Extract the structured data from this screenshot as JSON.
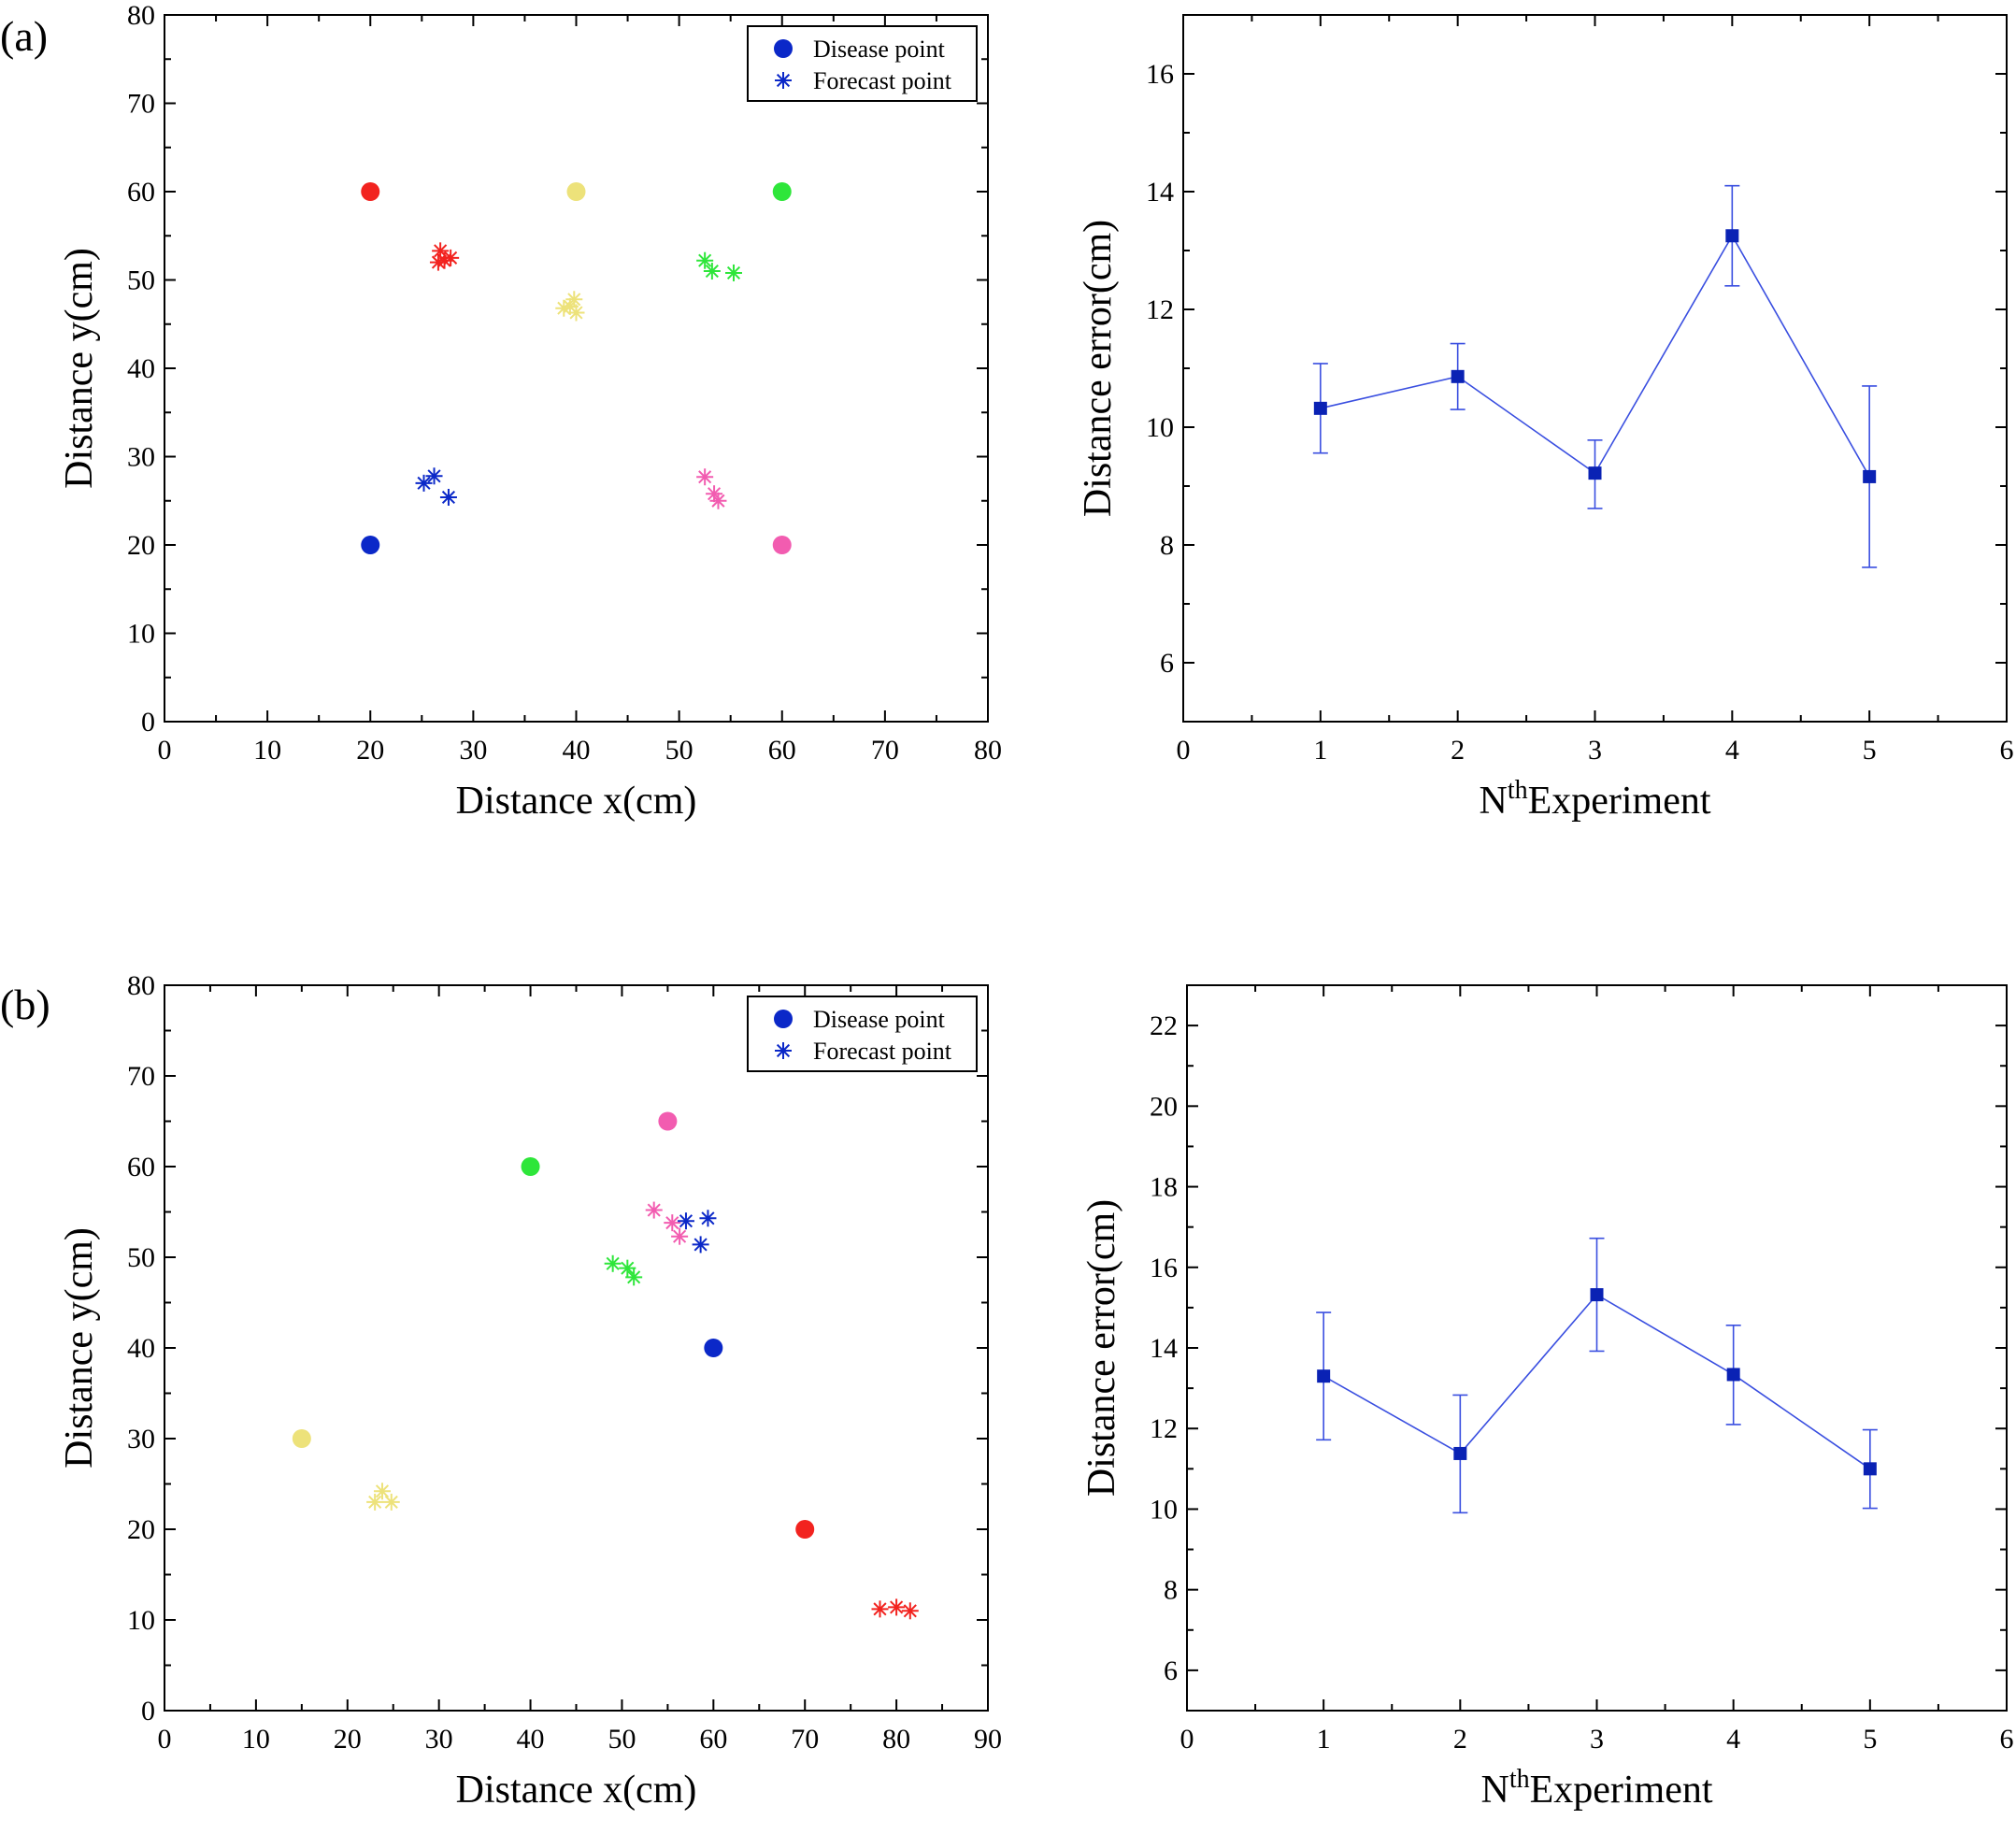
{
  "panels": {
    "a": "(a)",
    "b": "(b)"
  },
  "legend": {
    "disease": "Disease point",
    "forecast": "Forecast point"
  },
  "colors": {
    "blue": "#0b28c8",
    "red": "#f2231f",
    "yellow": "#ede27a",
    "green": "#2ee63a",
    "pink": "#f25cb0",
    "line": "#3a4fe0",
    "marker": "#0a22b4"
  },
  "chart_data": [
    {
      "id": "a-scatter",
      "type": "scatter",
      "xlabel": "Distance x(cm)",
      "ylabel": "Distance y(cm)",
      "xlim": [
        0,
        80
      ],
      "ylim": [
        0,
        80
      ],
      "xticks": [
        0,
        10,
        20,
        30,
        40,
        50,
        60,
        70,
        80
      ],
      "yticks": [
        0,
        10,
        20,
        30,
        40,
        50,
        60,
        70,
        80
      ],
      "legend": "top-right",
      "groups": [
        {
          "color": "red",
          "disease": [
            20,
            60
          ],
          "forecast": [
            [
              26.8,
              53.3
            ],
            [
              27.2,
              52.2
            ],
            [
              27.8,
              52.5
            ],
            [
              26.6,
              52.0
            ]
          ]
        },
        {
          "color": "yellow",
          "disease": [
            40,
            60
          ],
          "forecast": [
            [
              39.8,
              47.8
            ],
            [
              38.8,
              46.8
            ],
            [
              40.0,
              46.3
            ],
            [
              39.4,
              47.0
            ]
          ]
        },
        {
          "color": "green",
          "disease": [
            60,
            60
          ],
          "forecast": [
            [
              52.5,
              52.2
            ],
            [
              53.2,
              51.0
            ],
            [
              55.3,
              50.8
            ]
          ]
        },
        {
          "color": "blue",
          "disease": [
            20,
            20
          ],
          "forecast": [
            [
              25.2,
              27.0
            ],
            [
              26.2,
              27.8
            ],
            [
              27.6,
              25.4
            ]
          ]
        },
        {
          "color": "pink",
          "disease": [
            60,
            20
          ],
          "forecast": [
            [
              52.5,
              27.7
            ],
            [
              53.4,
              25.8
            ],
            [
              53.8,
              25.0
            ]
          ]
        }
      ]
    },
    {
      "id": "a-error",
      "type": "line",
      "xlabel": "N",
      "xlabel_sup": "th",
      "xlabel_rest": "Experiment",
      "ylabel": "Distance error(cm)",
      "xlim": [
        0,
        6
      ],
      "ylim": [
        5,
        17
      ],
      "xticks": [
        0,
        1,
        2,
        3,
        4,
        5,
        6
      ],
      "yticks": [
        6,
        8,
        10,
        12,
        14,
        16
      ],
      "x": [
        1,
        2,
        3,
        4,
        5
      ],
      "values": [
        10.32,
        10.86,
        9.22,
        13.25,
        9.16
      ],
      "err_upper": [
        11.08,
        11.42,
        9.78,
        14.1,
        10.7
      ],
      "err_lower": [
        9.56,
        10.3,
        8.62,
        12.4,
        7.62
      ]
    },
    {
      "id": "b-scatter",
      "type": "scatter",
      "xlabel": "Distance x(cm)",
      "ylabel": "Distance y(cm)",
      "xlim": [
        0,
        90
      ],
      "ylim": [
        0,
        80
      ],
      "xticks": [
        0,
        10,
        20,
        30,
        40,
        50,
        60,
        70,
        80,
        90
      ],
      "yticks": [
        0,
        10,
        20,
        30,
        40,
        50,
        60,
        70,
        80
      ],
      "legend": "top-right",
      "groups": [
        {
          "color": "pink",
          "disease": [
            55,
            65
          ],
          "forecast": [
            [
              53.5,
              55.2
            ],
            [
              55.5,
              53.8
            ],
            [
              56.3,
              52.3
            ]
          ]
        },
        {
          "color": "green",
          "disease": [
            40,
            60
          ],
          "forecast": [
            [
              49.0,
              49.3
            ],
            [
              50.6,
              48.8
            ],
            [
              51.3,
              47.8
            ]
          ]
        },
        {
          "color": "blue",
          "disease": [
            60,
            40
          ],
          "forecast": [
            [
              57.0,
              54.0
            ],
            [
              59.4,
              54.3
            ],
            [
              58.6,
              51.4
            ]
          ]
        },
        {
          "color": "yellow",
          "disease": [
            15,
            30
          ],
          "forecast": [
            [
              23.0,
              23.0
            ],
            [
              23.8,
              24.2
            ],
            [
              24.8,
              23.0
            ]
          ]
        },
        {
          "color": "red",
          "disease": [
            70,
            20
          ],
          "forecast": [
            [
              78.2,
              11.2
            ],
            [
              80.0,
              11.4
            ],
            [
              81.5,
              11.0
            ]
          ]
        }
      ]
    },
    {
      "id": "b-error",
      "type": "line",
      "xlabel": "N",
      "xlabel_sup": "th",
      "xlabel_rest": "Experiment",
      "ylabel": "Distance error(cm)",
      "xlim": [
        0,
        6
      ],
      "ylim": [
        5,
        23
      ],
      "xticks": [
        0,
        1,
        2,
        3,
        4,
        5,
        6
      ],
      "yticks": [
        6,
        8,
        10,
        12,
        14,
        16,
        18,
        20,
        22
      ],
      "x": [
        1,
        2,
        3,
        4,
        5
      ],
      "values": [
        13.3,
        11.38,
        15.32,
        13.34,
        11.0
      ],
      "err_upper": [
        14.88,
        12.83,
        16.72,
        14.56,
        11.97
      ],
      "err_lower": [
        11.72,
        9.91,
        13.92,
        12.1,
        10.02
      ]
    }
  ]
}
